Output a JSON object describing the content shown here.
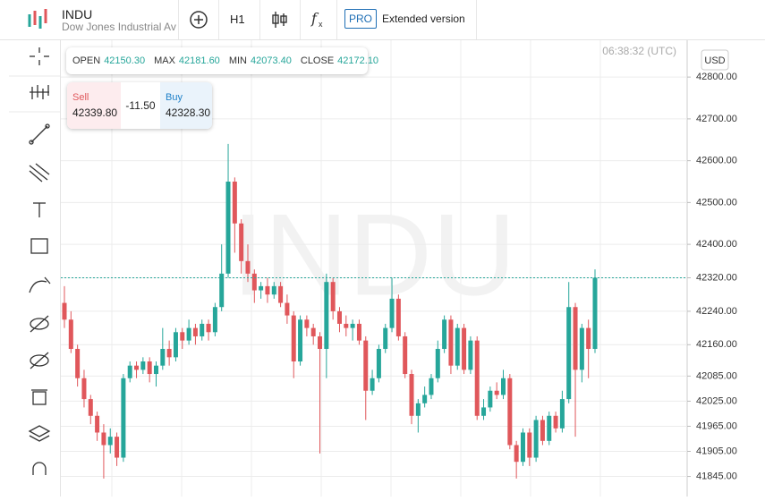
{
  "header": {
    "symbol": "INDU",
    "name": "Dow Jones Industrial Ave",
    "timeframe": "H1",
    "pro": "PRO",
    "extended": "Extended version"
  },
  "ohlc": [
    {
      "label": "OPEN",
      "value": "42150.30"
    },
    {
      "label": "MAX",
      "value": "42181.60"
    },
    {
      "label": "MIN",
      "value": "42073.40"
    },
    {
      "label": "CLOSE",
      "value": "42172.10"
    }
  ],
  "trade": {
    "sell_label": "Sell",
    "sell": "42339.80",
    "spread": "-11.50",
    "buy_label": "Buy",
    "buy": "42328.30"
  },
  "time": "06:38:32 (UTC)",
  "currency": "USD",
  "chart_data": {
    "type": "candlestick",
    "ylim": [
      41797,
      42888
    ],
    "yticks": [
      {
        "value": 42800,
        "label": "42800.00"
      },
      {
        "value": 42700,
        "label": "42700.00"
      },
      {
        "value": 42600,
        "label": "42600.00"
      },
      {
        "value": 42500,
        "label": "42500.00"
      },
      {
        "value": 42400,
        "label": "42400.00"
      },
      {
        "value": 42320,
        "label": "42320.00"
      },
      {
        "value": 42240,
        "label": "42240.00"
      },
      {
        "value": 42160,
        "label": "42160.00"
      },
      {
        "value": 42085,
        "label": "42085.00"
      },
      {
        "value": 42025,
        "label": "42025.00"
      },
      {
        "value": 41965,
        "label": "41965.00"
      },
      {
        "value": 41905,
        "label": "41905.00"
      },
      {
        "value": 41845,
        "label": "41845.00"
      }
    ],
    "up_color": "#26a69a",
    "down_color": "#e0575b",
    "candles": [
      [
        42260,
        42300,
        42200,
        42220
      ],
      [
        42220,
        42240,
        42140,
        42150
      ],
      [
        42150,
        42160,
        42060,
        42080
      ],
      [
        42080,
        42100,
        42010,
        42030
      ],
      [
        42030,
        42040,
        41970,
        41990
      ],
      [
        41990,
        42000,
        41930,
        41950
      ],
      [
        41950,
        41970,
        41840,
        41920
      ],
      [
        41920,
        41960,
        41900,
        41940
      ],
      [
        41940,
        41950,
        41870,
        41890
      ],
      [
        41890,
        42090,
        41880,
        42080
      ],
      [
        42080,
        42120,
        42070,
        42110
      ],
      [
        42110,
        42120,
        42080,
        42100
      ],
      [
        42100,
        42130,
        42090,
        42120
      ],
      [
        42120,
        42130,
        42070,
        42090
      ],
      [
        42090,
        42120,
        42060,
        42110
      ],
      [
        42110,
        42200,
        42100,
        42150
      ],
      [
        42150,
        42170,
        42110,
        42130
      ],
      [
        42130,
        42200,
        42120,
        42190
      ],
      [
        42190,
        42200,
        42150,
        42170
      ],
      [
        42170,
        42220,
        42160,
        42200
      ],
      [
        42200,
        42210,
        42160,
        42180
      ],
      [
        42180,
        42220,
        42170,
        42210
      ],
      [
        42210,
        42220,
        42170,
        42190
      ],
      [
        42190,
        42260,
        42180,
        42250
      ],
      [
        42250,
        42400,
        42240,
        42330
      ],
      [
        42330,
        42640,
        42320,
        42550
      ],
      [
        42550,
        42560,
        42380,
        42450
      ],
      [
        42450,
        42460,
        42330,
        42360
      ],
      [
        42360,
        42400,
        42310,
        42330
      ],
      [
        42330,
        42340,
        42260,
        42290
      ],
      [
        42290,
        42310,
        42270,
        42300
      ],
      [
        42300,
        42320,
        42260,
        42280
      ],
      [
        42280,
        42310,
        42270,
        42300
      ],
      [
        42300,
        42310,
        42250,
        42260
      ],
      [
        42260,
        42280,
        42210,
        42230
      ],
      [
        42230,
        42240,
        42080,
        42120
      ],
      [
        42120,
        42230,
        42110,
        42220
      ],
      [
        42220,
        42230,
        42180,
        42200
      ],
      [
        42200,
        42210,
        42160,
        42180
      ],
      [
        42180,
        42190,
        41900,
        42150
      ],
      [
        42150,
        42330,
        42080,
        42310
      ],
      [
        42310,
        42320,
        42220,
        42240
      ],
      [
        42240,
        42250,
        42190,
        42210
      ],
      [
        42210,
        42230,
        42180,
        42200
      ],
      [
        42200,
        42220,
        42170,
        42210
      ],
      [
        42210,
        42220,
        42160,
        42170
      ],
      [
        42170,
        42180,
        41980,
        42050
      ],
      [
        42050,
        42100,
        42040,
        42080
      ],
      [
        42080,
        42160,
        42070,
        42150
      ],
      [
        42150,
        42210,
        42140,
        42200
      ],
      [
        42200,
        42320,
        42190,
        42270
      ],
      [
        42270,
        42280,
        42170,
        42180
      ],
      [
        42180,
        42190,
        42080,
        42090
      ],
      [
        42090,
        42100,
        41970,
        41990
      ],
      [
        41990,
        42030,
        41950,
        42020
      ],
      [
        42020,
        42060,
        42010,
        42040
      ],
      [
        42040,
        42090,
        42030,
        42080
      ],
      [
        42080,
        42170,
        42070,
        42150
      ],
      [
        42150,
        42230,
        42140,
        42220
      ],
      [
        42220,
        42230,
        42090,
        42110
      ],
      [
        42110,
        42210,
        42100,
        42200
      ],
      [
        42200,
        42210,
        42090,
        42100
      ],
      [
        42100,
        42180,
        42090,
        42170
      ],
      [
        42170,
        42180,
        41980,
        41990
      ],
      [
        41990,
        42030,
        41980,
        42010
      ],
      [
        42010,
        42060,
        42000,
        42050
      ],
      [
        42050,
        42070,
        42030,
        42040
      ],
      [
        42040,
        42100,
        42030,
        42080
      ],
      [
        42080,
        42090,
        41910,
        41920
      ],
      [
        41920,
        41930,
        41840,
        41880
      ],
      [
        41880,
        41960,
        41870,
        41950
      ],
      [
        41950,
        41960,
        41870,
        41890
      ],
      [
        41890,
        41990,
        41880,
        41980
      ],
      [
        41980,
        41990,
        41920,
        41930
      ],
      [
        41930,
        42000,
        41920,
        41990
      ],
      [
        41990,
        42000,
        41950,
        41960
      ],
      [
        41960,
        42050,
        41950,
        42030
      ],
      [
        42030,
        42310,
        42020,
        42250
      ],
      [
        42250,
        42260,
        41940,
        42100
      ],
      [
        42100,
        42210,
        42070,
        42200
      ],
      [
        42200,
        42220,
        42080,
        42150
      ],
      [
        42150,
        42340,
        42140,
        42320
      ]
    ]
  }
}
